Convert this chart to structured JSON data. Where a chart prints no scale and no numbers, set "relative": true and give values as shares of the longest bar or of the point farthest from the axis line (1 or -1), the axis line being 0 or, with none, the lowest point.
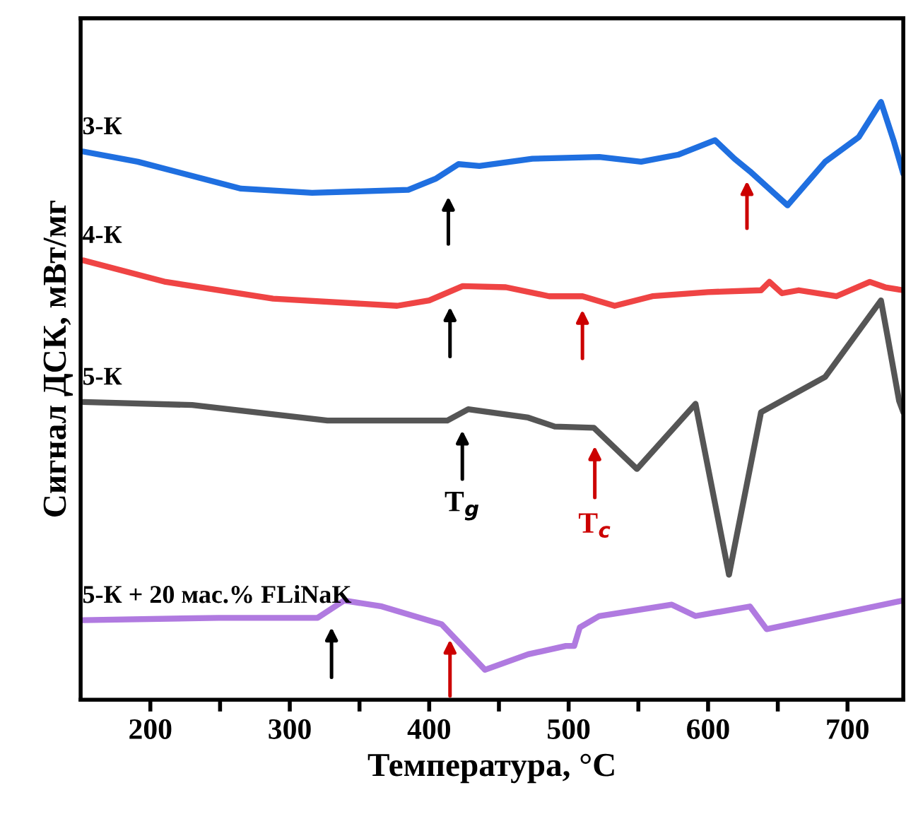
{
  "chart_data": {
    "type": "line",
    "relative": true,
    "xlabel": "Температура, °C",
    "ylabel": "Сигнал ДСК, мВт/мг",
    "xlim": [
      150,
      740
    ],
    "xticks": [
      200,
      {
        "value": 250,
        "label": null
      },
      300,
      {
        "value": 350,
        "label": null
      },
      400,
      {
        "value": 450,
        "label": null
      },
      500,
      {
        "value": 550,
        "label": null
      },
      600,
      {
        "value": 650,
        "label": null
      },
      700
    ],
    "tick_labels": "x",
    "grid": false,
    "legend": false,
    "marker": "none",
    "line_style": "solid",
    "series": [
      {
        "name": "3-К",
        "color": "#1f6fe0",
        "x": [
          152,
          191,
          265,
          316,
          385,
          405,
          421,
          436,
          474,
          522,
          552,
          579,
          605,
          619,
          630,
          657,
          684,
          708,
          724,
          733,
          740
        ],
        "values": [
          0.917,
          0.9,
          0.855,
          0.848,
          0.853,
          0.872,
          0.896,
          0.893,
          0.905,
          0.908,
          0.9,
          0.912,
          0.936,
          0.905,
          0.884,
          0.827,
          0.9,
          0.941,
          1.0,
          0.936,
          0.88
        ]
      },
      {
        "name": "4-К",
        "color": "#ef4444",
        "x": [
          152,
          211,
          288,
          377,
          400,
          424,
          455,
          486,
          510,
          533,
          560,
          600,
          638,
          644,
          653,
          665,
          692,
          716,
          727,
          740
        ],
        "values": [
          0.735,
          0.699,
          0.671,
          0.659,
          0.668,
          0.692,
          0.69,
          0.675,
          0.675,
          0.659,
          0.675,
          0.682,
          0.685,
          0.699,
          0.68,
          0.685,
          0.675,
          0.699,
          0.69,
          0.685
        ]
      },
      {
        "name": "5-К",
        "color": "#555555",
        "x": [
          152,
          230,
          327,
          413,
          428,
          471,
          490,
          518,
          549,
          591,
          615,
          638,
          684,
          724,
          729,
          737,
          740
        ],
        "values": [
          0.498,
          0.493,
          0.467,
          0.467,
          0.486,
          0.472,
          0.457,
          0.455,
          0.386,
          0.495,
          0.209,
          0.481,
          0.54,
          0.668,
          0.604,
          0.5,
          0.481
        ]
      },
      {
        "name": "5-К + 20 мас.% FLiNaK",
        "color": "#b07ae0",
        "x": [
          152,
          249,
          320,
          339,
          366,
          409,
          440,
          471,
          498,
          504,
          508,
          522,
          574,
          591,
          630,
          642,
          740
        ],
        "values": [
          0.133,
          0.137,
          0.137,
          0.166,
          0.156,
          0.126,
          0.05,
          0.076,
          0.09,
          0.09,
          0.121,
          0.14,
          0.159,
          0.14,
          0.156,
          0.118,
          0.166
        ]
      }
    ],
    "annotations": [
      "T$_{g}$",
      "T$_{c}$"
    ]
  }
}
